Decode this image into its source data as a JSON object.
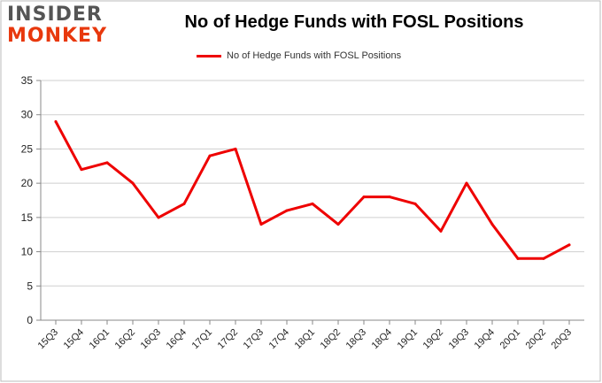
{
  "logo": {
    "top": "INSIDER",
    "bottom": "MONKEY"
  },
  "chart_data": {
    "type": "line",
    "title": "No of Hedge Funds with FOSL Positions",
    "xlabel": "",
    "ylabel": "",
    "legend_position": "top-center",
    "grid": true,
    "ylim": [
      0,
      35
    ],
    "yticks": [
      0,
      5,
      10,
      15,
      20,
      25,
      30,
      35
    ],
    "categories": [
      "15Q3",
      "15Q4",
      "16Q1",
      "16Q2",
      "16Q3",
      "16Q4",
      "17Q1",
      "17Q2",
      "17Q3",
      "17Q4",
      "18Q1",
      "18Q2",
      "18Q3",
      "18Q4",
      "19Q1",
      "19Q2",
      "19Q3",
      "19Q4",
      "20Q1",
      "20Q2",
      "20Q3"
    ],
    "series": [
      {
        "name": "No of Hedge Funds with FOSL Positions",
        "color": "#ee0000",
        "values": [
          29,
          22,
          23,
          20,
          15,
          17,
          24,
          25,
          14,
          16,
          17,
          14,
          18,
          18,
          17,
          13,
          20,
          14,
          9,
          9,
          11
        ]
      }
    ]
  }
}
